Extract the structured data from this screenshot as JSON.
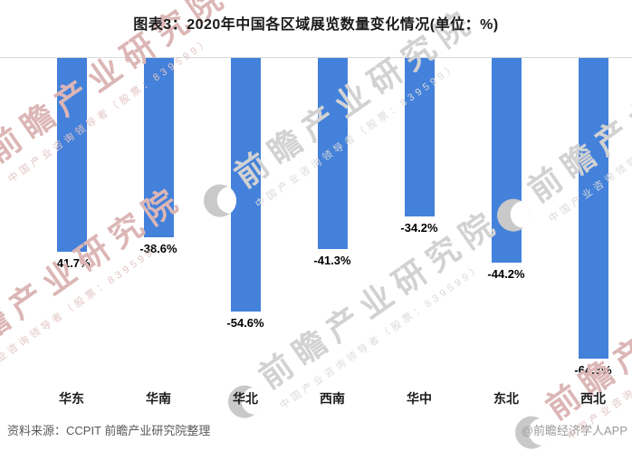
{
  "title": "图表3：2020年中国各区域展览数量变化情况(单位：%)",
  "chart_data": {
    "type": "bar",
    "title": "图表3：2020年中国各区域展览数量变化情况(单位：%)",
    "categories": [
      "华东",
      "华南",
      "华北",
      "西南",
      "华中",
      "东北",
      "西北"
    ],
    "values": [
      -41.7,
      -38.6,
      -54.6,
      -41.3,
      -34.2,
      -44.2,
      -64.8
    ],
    "labels": [
      "-41.7%",
      "-38.6%",
      "-54.6%",
      "-41.3%",
      "-34.2%",
      "-44.2%",
      "-64.8%"
    ],
    "unit": "%",
    "xlabel": "",
    "ylabel": "",
    "ylim": [
      -70,
      0
    ],
    "grid": false,
    "legend": "none",
    "bar_color": "#4381db",
    "axis_line_color": "#d9d9d9",
    "orientation": "vertical-from-zero-baseline"
  },
  "footer": {
    "source": "资料来源：CCPIT 前瞻产业研究院整理",
    "credit": "@前瞻经济学人APP"
  },
  "watermark": {
    "big_text": "前瞻产业研究院",
    "small_text": "中国产业咨询领导者（股票：839599）",
    "logo": "qianzhan-logo"
  }
}
